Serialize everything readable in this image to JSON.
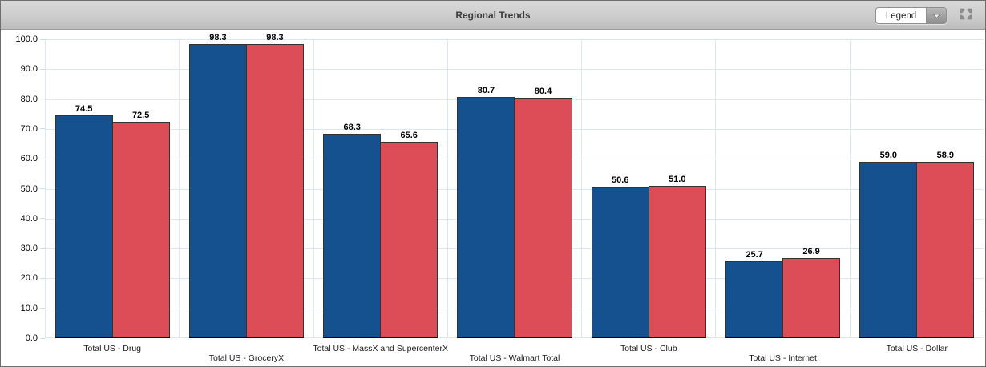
{
  "header": {
    "title": "Regional Trends",
    "legend_dropdown": {
      "label": "Legend"
    }
  },
  "icons": {
    "dropdown_arrow": "chevron-down-icon",
    "collapse": "collapse-arrows-icon"
  },
  "colors": {
    "series1": "#15518f",
    "series2": "#dc4d58",
    "gridline": "#dce8f5",
    "bar_border": "#333333"
  },
  "chart_data": {
    "type": "bar",
    "title": "Regional Trends",
    "categories": [
      "Total US - Drug",
      "Total US - GroceryX",
      "Total US - MassX and SupercenterX",
      "Total US - Walmart Total",
      "Total US - Club",
      "Total US - Internet",
      "Total US - Dollar"
    ],
    "series": [
      {
        "color": "#15518f",
        "values": [
          74.5,
          98.3,
          68.3,
          80.7,
          50.6,
          25.7,
          59.0
        ]
      },
      {
        "color": "#dc4d58",
        "values": [
          72.5,
          98.3,
          65.6,
          80.4,
          51.0,
          26.9,
          58.9
        ]
      }
    ],
    "value_labels": [
      "74.5",
      "72.5",
      "98.3",
      "98.3",
      "68.3",
      "65.6",
      "80.7",
      "80.4",
      "50.6",
      "51.0",
      "25.7",
      "26.9",
      "59.0",
      "58.9"
    ],
    "ylim": [
      0,
      100
    ],
    "ytick_step": 10,
    "ytick_labels": [
      "0.0",
      "10.0",
      "20.0",
      "30.0",
      "40.0",
      "50.0",
      "60.0",
      "70.0",
      "80.0",
      "90.0",
      "100.0"
    ],
    "grid": true,
    "legend_position": "collapsed-dropdown"
  }
}
